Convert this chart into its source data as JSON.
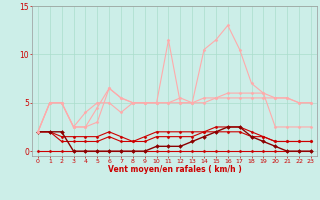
{
  "x": [
    0,
    1,
    2,
    3,
    4,
    5,
    6,
    7,
    8,
    9,
    10,
    11,
    12,
    13,
    14,
    15,
    16,
    17,
    18,
    19,
    20,
    21,
    22,
    23
  ],
  "series": [
    {
      "color": "#cc0000",
      "lw": 0.8,
      "marker": "D",
      "ms": 1.5,
      "y": [
        0,
        0,
        0,
        0,
        0,
        0,
        0,
        0,
        0,
        0,
        0,
        0,
        0,
        0,
        0,
        0,
        0,
        0,
        0,
        0,
        0,
        0,
        0,
        0
      ]
    },
    {
      "color": "#cc0000",
      "lw": 0.8,
      "marker": "D",
      "ms": 1.5,
      "y": [
        2,
        2,
        1,
        1,
        1,
        1,
        1.5,
        1,
        1,
        1,
        1.5,
        1.5,
        1.5,
        1.5,
        2,
        2,
        2,
        2,
        1.5,
        1.5,
        1,
        1,
        1,
        1
      ]
    },
    {
      "color": "#cc0000",
      "lw": 0.8,
      "marker": "D",
      "ms": 1.5,
      "y": [
        2,
        2,
        1.5,
        1.5,
        1.5,
        1.5,
        2,
        1.5,
        1,
        1.5,
        2,
        2,
        2,
        2,
        2,
        2.5,
        2.5,
        2.5,
        2,
        1.5,
        1,
        1,
        1,
        1
      ]
    },
    {
      "color": "#8b0000",
      "lw": 1.0,
      "marker": "D",
      "ms": 2.0,
      "y": [
        2,
        2,
        2,
        0,
        0,
        0,
        0,
        0,
        0,
        0,
        0.5,
        0.5,
        0.5,
        1,
        1.5,
        2,
        2.5,
        2.5,
        1.5,
        1,
        0.5,
        0,
        0,
        0
      ]
    },
    {
      "color": "#ffaaaa",
      "lw": 0.8,
      "marker": "D",
      "ms": 1.5,
      "y": [
        2,
        5,
        5,
        2.5,
        2.5,
        3,
        6.5,
        5.5,
        5,
        5,
        5,
        5,
        5,
        5,
        5,
        5.5,
        6,
        6,
        6,
        6,
        5.5,
        5.5,
        5,
        5
      ]
    },
    {
      "color": "#ffaaaa",
      "lw": 0.8,
      "marker": "D",
      "ms": 1.5,
      "y": [
        2,
        5,
        5,
        2.5,
        4,
        5,
        5,
        4,
        5,
        5,
        5,
        5,
        5.5,
        5,
        5.5,
        5.5,
        5.5,
        5.5,
        5.5,
        5.5,
        5.5,
        5.5,
        5,
        5
      ]
    },
    {
      "color": "#ffaaaa",
      "lw": 0.8,
      "marker": "D",
      "ms": 1.5,
      "y": [
        2,
        5,
        5,
        2.5,
        2.5,
        4.5,
        6.5,
        5.5,
        5,
        5,
        5,
        11.5,
        5,
        5,
        10.5,
        11.5,
        13,
        10.5,
        7,
        6,
        2.5,
        2.5,
        2.5,
        2.5
      ]
    }
  ],
  "ylim": [
    -0.5,
    15
  ],
  "yticks": [
    0,
    5,
    10,
    15
  ],
  "xlim": [
    -0.5,
    23.5
  ],
  "xticks": [
    0,
    1,
    2,
    3,
    4,
    5,
    6,
    7,
    8,
    9,
    10,
    11,
    12,
    13,
    14,
    15,
    16,
    17,
    18,
    19,
    20,
    21,
    22,
    23
  ],
  "xlabel": "Vent moyen/en rafales ( km/h )",
  "bg_color": "#cceee8",
  "grid_color": "#aaddcc",
  "label_color": "#cc0000",
  "axis_color": "#999999"
}
